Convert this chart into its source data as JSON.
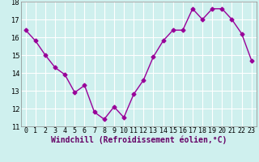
{
  "x": [
    0,
    1,
    2,
    3,
    4,
    5,
    6,
    7,
    8,
    9,
    10,
    11,
    12,
    13,
    14,
    15,
    16,
    17,
    18,
    19,
    20,
    21,
    22,
    23
  ],
  "y": [
    16.4,
    15.8,
    15.0,
    14.3,
    13.9,
    12.9,
    13.3,
    11.8,
    11.4,
    12.1,
    11.5,
    12.8,
    13.6,
    14.9,
    15.8,
    16.4,
    16.4,
    17.6,
    17.0,
    17.6,
    17.6,
    17.0,
    16.2,
    14.7
  ],
  "line_color": "#990099",
  "marker": "D",
  "markersize": 2.5,
  "linewidth": 1.0,
  "xlabel": "Windchill (Refroidissement éolien,°C)",
  "xlim": [
    -0.5,
    23.5
  ],
  "ylim": [
    11,
    18
  ],
  "yticks": [
    11,
    12,
    13,
    14,
    15,
    16,
    17,
    18
  ],
  "xtick_labels": [
    "0",
    "1",
    "2",
    "3",
    "4",
    "5",
    "6",
    "7",
    "8",
    "9",
    "10",
    "11",
    "12",
    "13",
    "14",
    "15",
    "16",
    "17",
    "18",
    "19",
    "20",
    "21",
    "22",
    "23"
  ],
  "bg_color": "#cff0ee",
  "grid_color": "#ffffff",
  "tick_fontsize": 6,
  "xlabel_fontsize": 7
}
